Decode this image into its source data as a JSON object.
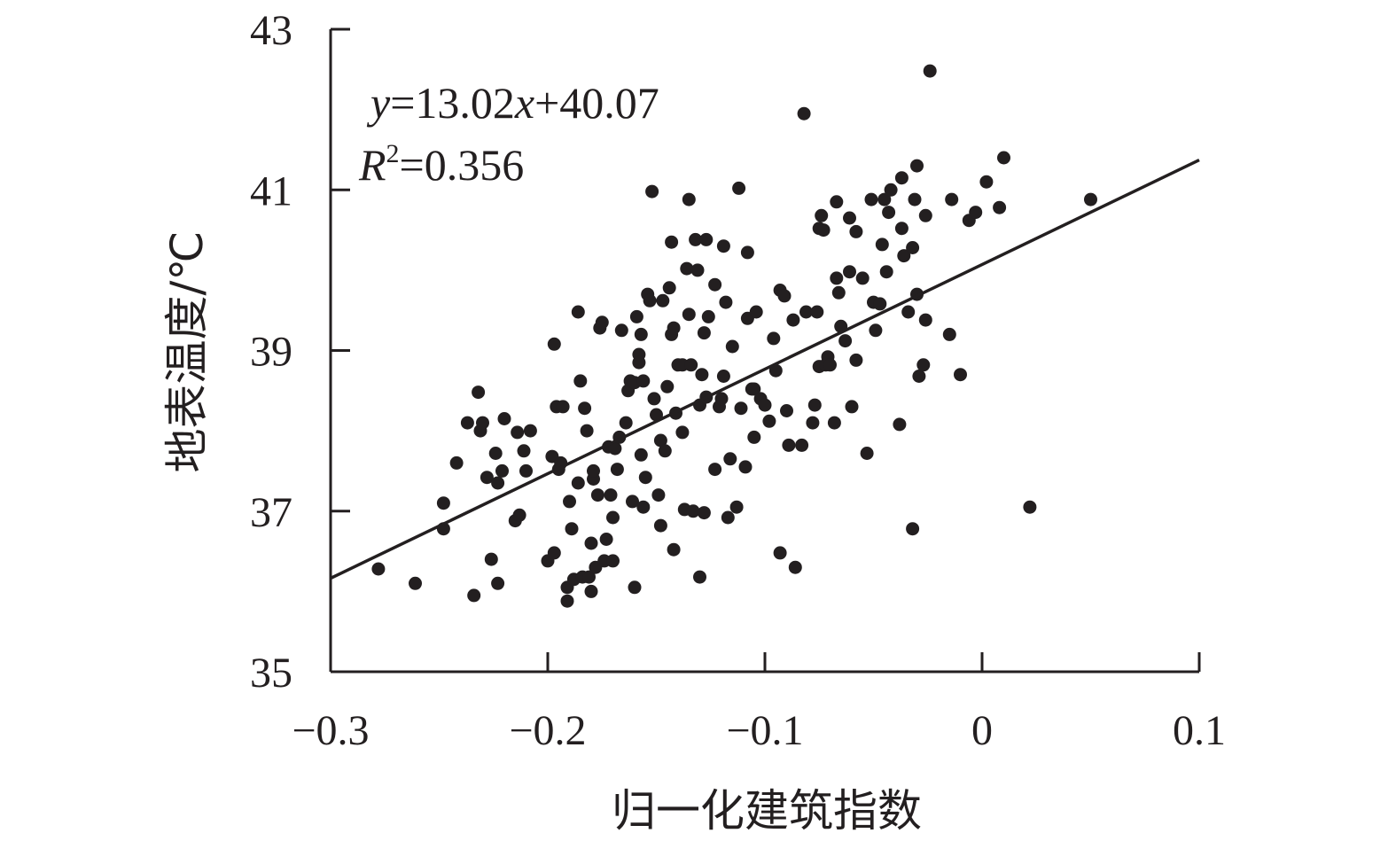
{
  "chart_data": {
    "type": "scatter",
    "title": "",
    "xlabel": "归一化建筑指数",
    "ylabel": "地表温度/℃",
    "xlim": [
      -0.3,
      0.1
    ],
    "ylim": [
      35,
      43
    ],
    "x_ticks": [
      -0.3,
      -0.2,
      -0.1,
      0,
      0.1
    ],
    "x_tick_labels": [
      "−0.3",
      "−0.2",
      "−0.1",
      "0",
      "0.1"
    ],
    "y_ticks": [
      35,
      37,
      39,
      41,
      43
    ],
    "y_tick_labels": [
      "35",
      "37",
      "39",
      "41",
      "43"
    ],
    "grid": false,
    "point_color": "#231f20",
    "trendline": {
      "slope": 13.02,
      "intercept": 40.07,
      "x_range": [
        -0.3,
        0.1
      ],
      "equation_y": "y",
      "equation_rest": "=13.02",
      "equation_x": "x",
      "equation_const": "+40.07",
      "r2_symbol": "R",
      "r2_exp": "2",
      "r2_value": "=0.356"
    },
    "points": [
      [
        -0.278,
        36.28
      ],
      [
        -0.261,
        36.1
      ],
      [
        -0.248,
        36.78
      ],
      [
        -0.248,
        37.1
      ],
      [
        -0.242,
        37.6
      ],
      [
        -0.237,
        38.1
      ],
      [
        -0.234,
        35.95
      ],
      [
        -0.232,
        38.48
      ],
      [
        -0.231,
        38.0
      ],
      [
        -0.23,
        38.1
      ],
      [
        -0.228,
        37.42
      ],
      [
        -0.226,
        36.4
      ],
      [
        -0.224,
        37.72
      ],
      [
        -0.223,
        37.35
      ],
      [
        -0.223,
        36.1
      ],
      [
        -0.221,
        37.5
      ],
      [
        -0.22,
        38.15
      ],
      [
        -0.215,
        36.88
      ],
      [
        -0.214,
        37.98
      ],
      [
        -0.213,
        36.95
      ],
      [
        -0.211,
        37.75
      ],
      [
        -0.21,
        37.5
      ],
      [
        -0.208,
        38.0
      ],
      [
        -0.2,
        36.38
      ],
      [
        -0.198,
        37.68
      ],
      [
        -0.197,
        36.48
      ],
      [
        -0.197,
        39.08
      ],
      [
        -0.196,
        38.3
      ],
      [
        -0.195,
        37.52
      ],
      [
        -0.194,
        37.6
      ],
      [
        -0.193,
        38.3
      ],
      [
        -0.191,
        36.05
      ],
      [
        -0.191,
        35.88
      ],
      [
        -0.19,
        37.12
      ],
      [
        -0.189,
        36.78
      ],
      [
        -0.188,
        36.15
      ],
      [
        -0.186,
        37.35
      ],
      [
        -0.186,
        39.48
      ],
      [
        -0.185,
        38.62
      ],
      [
        -0.184,
        36.18
      ],
      [
        -0.183,
        38.28
      ],
      [
        -0.182,
        38.0
      ],
      [
        -0.181,
        36.18
      ],
      [
        -0.18,
        36.0
      ],
      [
        -0.18,
        36.6
      ],
      [
        -0.179,
        37.4
      ],
      [
        -0.179,
        37.5
      ],
      [
        -0.178,
        36.3
      ],
      [
        -0.177,
        37.2
      ],
      [
        -0.176,
        39.28
      ],
      [
        -0.175,
        39.35
      ],
      [
        -0.174,
        36.38
      ],
      [
        -0.173,
        36.65
      ],
      [
        -0.172,
        37.8
      ],
      [
        -0.171,
        37.2
      ],
      [
        -0.17,
        36.38
      ],
      [
        -0.17,
        36.92
      ],
      [
        -0.169,
        37.78
      ],
      [
        -0.168,
        37.52
      ],
      [
        -0.167,
        37.92
      ],
      [
        -0.166,
        39.25
      ],
      [
        -0.164,
        38.1
      ],
      [
        -0.163,
        38.5
      ],
      [
        -0.162,
        38.62
      ],
      [
        -0.161,
        37.12
      ],
      [
        -0.16,
        36.05
      ],
      [
        -0.16,
        38.6
      ],
      [
        -0.159,
        39.42
      ],
      [
        -0.158,
        38.95
      ],
      [
        -0.158,
        38.85
      ],
      [
        -0.157,
        39.2
      ],
      [
        -0.157,
        37.7
      ],
      [
        -0.156,
        37.05
      ],
      [
        -0.156,
        38.62
      ],
      [
        -0.155,
        37.42
      ],
      [
        -0.154,
        39.7
      ],
      [
        -0.153,
        39.62
      ],
      [
        -0.152,
        40.98
      ],
      [
        -0.151,
        38.4
      ],
      [
        -0.15,
        38.2
      ],
      [
        -0.149,
        37.2
      ],
      [
        -0.148,
        36.82
      ],
      [
        -0.148,
        37.88
      ],
      [
        -0.147,
        39.62
      ],
      [
        -0.146,
        37.75
      ],
      [
        -0.145,
        38.55
      ],
      [
        -0.144,
        39.78
      ],
      [
        -0.143,
        39.2
      ],
      [
        -0.143,
        40.35
      ],
      [
        -0.142,
        39.28
      ],
      [
        -0.142,
        36.52
      ],
      [
        -0.141,
        38.22
      ],
      [
        -0.14,
        38.82
      ],
      [
        -0.138,
        38.82
      ],
      [
        -0.138,
        37.98
      ],
      [
        -0.137,
        37.02
      ],
      [
        -0.136,
        40.02
      ],
      [
        -0.135,
        39.45
      ],
      [
        -0.135,
        40.88
      ],
      [
        -0.134,
        38.82
      ],
      [
        -0.133,
        37.0
      ],
      [
        -0.132,
        40.38
      ],
      [
        -0.131,
        40.0
      ],
      [
        -0.13,
        36.18
      ],
      [
        -0.13,
        38.32
      ],
      [
        -0.129,
        38.7
      ],
      [
        -0.128,
        39.22
      ],
      [
        -0.128,
        36.98
      ],
      [
        -0.127,
        40.38
      ],
      [
        -0.127,
        38.42
      ],
      [
        -0.126,
        39.42
      ],
      [
        -0.123,
        39.82
      ],
      [
        -0.123,
        37.52
      ],
      [
        -0.121,
        38.3
      ],
      [
        -0.12,
        38.4
      ],
      [
        -0.119,
        40.3
      ],
      [
        -0.119,
        38.68
      ],
      [
        -0.118,
        39.6
      ],
      [
        -0.117,
        36.92
      ],
      [
        -0.116,
        37.65
      ],
      [
        -0.115,
        39.05
      ],
      [
        -0.113,
        37.05
      ],
      [
        -0.112,
        41.02
      ],
      [
        -0.111,
        38.28
      ],
      [
        -0.109,
        37.55
      ],
      [
        -0.108,
        40.22
      ],
      [
        -0.108,
        39.4
      ],
      [
        -0.106,
        38.52
      ],
      [
        -0.105,
        37.92
      ],
      [
        -0.105,
        38.52
      ],
      [
        -0.104,
        39.48
      ],
      [
        -0.102,
        38.4
      ],
      [
        -0.1,
        38.32
      ],
      [
        -0.098,
        38.12
      ],
      [
        -0.096,
        39.15
      ],
      [
        -0.095,
        38.75
      ],
      [
        -0.093,
        39.75
      ],
      [
        -0.093,
        36.48
      ],
      [
        -0.091,
        39.68
      ],
      [
        -0.09,
        38.25
      ],
      [
        -0.089,
        37.82
      ],
      [
        -0.087,
        39.38
      ],
      [
        -0.086,
        36.3
      ],
      [
        -0.083,
        37.82
      ],
      [
        -0.082,
        41.95
      ],
      [
        -0.081,
        39.48
      ],
      [
        -0.078,
        38.1
      ],
      [
        -0.077,
        38.32
      ],
      [
        -0.076,
        39.48
      ],
      [
        -0.075,
        40.52
      ],
      [
        -0.075,
        38.8
      ],
      [
        -0.074,
        40.68
      ],
      [
        -0.073,
        40.5
      ],
      [
        -0.072,
        38.82
      ],
      [
        -0.071,
        38.92
      ],
      [
        -0.07,
        38.82
      ],
      [
        -0.068,
        38.1
      ],
      [
        -0.067,
        40.85
      ],
      [
        -0.067,
        39.9
      ],
      [
        -0.066,
        39.72
      ],
      [
        -0.065,
        39.3
      ],
      [
        -0.063,
        39.12
      ],
      [
        -0.061,
        40.65
      ],
      [
        -0.061,
        39.98
      ],
      [
        -0.06,
        38.3
      ],
      [
        -0.058,
        40.48
      ],
      [
        -0.058,
        38.88
      ],
      [
        -0.055,
        39.9
      ],
      [
        -0.053,
        37.72
      ],
      [
        -0.051,
        40.88
      ],
      [
        -0.05,
        39.6
      ],
      [
        -0.049,
        39.25
      ],
      [
        -0.047,
        39.58
      ],
      [
        -0.046,
        40.32
      ],
      [
        -0.045,
        40.88
      ],
      [
        -0.044,
        39.98
      ],
      [
        -0.043,
        40.72
      ],
      [
        -0.042,
        41.0
      ],
      [
        -0.038,
        38.08
      ],
      [
        -0.037,
        40.52
      ],
      [
        -0.037,
        41.15
      ],
      [
        -0.036,
        40.18
      ],
      [
        -0.034,
        39.48
      ],
      [
        -0.032,
        36.78
      ],
      [
        -0.032,
        40.28
      ],
      [
        -0.031,
        40.88
      ],
      [
        -0.03,
        41.3
      ],
      [
        -0.03,
        39.7
      ],
      [
        -0.029,
        38.68
      ],
      [
        -0.027,
        38.82
      ],
      [
        -0.026,
        40.68
      ],
      [
        -0.026,
        39.38
      ],
      [
        -0.024,
        42.48
      ],
      [
        -0.015,
        39.2
      ],
      [
        -0.014,
        40.88
      ],
      [
        -0.01,
        38.7
      ],
      [
        -0.006,
        40.62
      ],
      [
        -0.003,
        40.72
      ],
      [
        0.002,
        41.1
      ],
      [
        0.008,
        40.78
      ],
      [
        0.01,
        41.4
      ],
      [
        0.022,
        37.05
      ],
      [
        0.05,
        40.88
      ]
    ]
  }
}
